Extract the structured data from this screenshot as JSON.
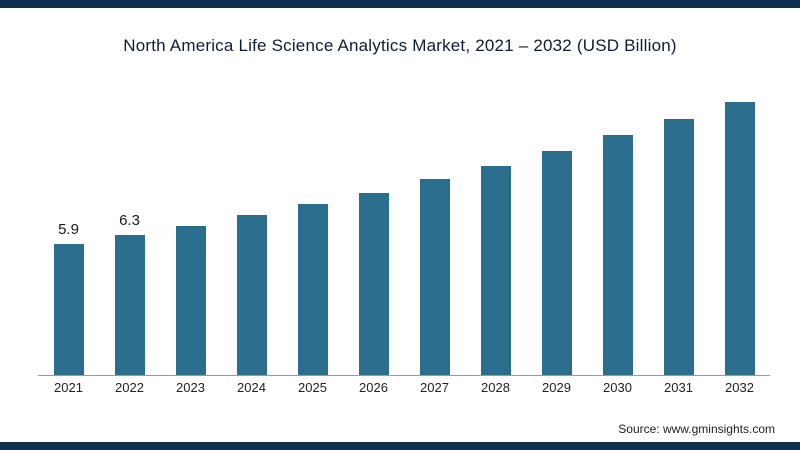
{
  "title": "North America Life Science Analytics Market, 2021 – 2032 (USD Billion)",
  "source": "Source: www.gminsights.com",
  "colors": {
    "bar": "#2b6d8c",
    "frame": "#0e3050",
    "axis": "#9a9a9a",
    "title": "#101b35"
  },
  "chart_data": {
    "type": "bar",
    "title": "North America Life Science Analytics Market, 2021 – 2032 (USD Billion)",
    "categories": [
      "2021",
      "2022",
      "2023",
      "2024",
      "2025",
      "2026",
      "2027",
      "2028",
      "2029",
      "2030",
      "2031",
      "2032"
    ],
    "values": [
      5.9,
      6.3,
      6.7,
      7.2,
      7.7,
      8.2,
      8.8,
      9.4,
      10.1,
      10.8,
      11.5,
      12.3
    ],
    "value_labels": [
      "5.9",
      "6.3",
      "",
      "",
      "",
      "",
      "",
      "",
      "",
      "",
      "",
      ""
    ],
    "xlabel": "",
    "ylabel": "USD Billion",
    "ylim": [
      0,
      13.5
    ],
    "grid": false,
    "legend": false
  }
}
